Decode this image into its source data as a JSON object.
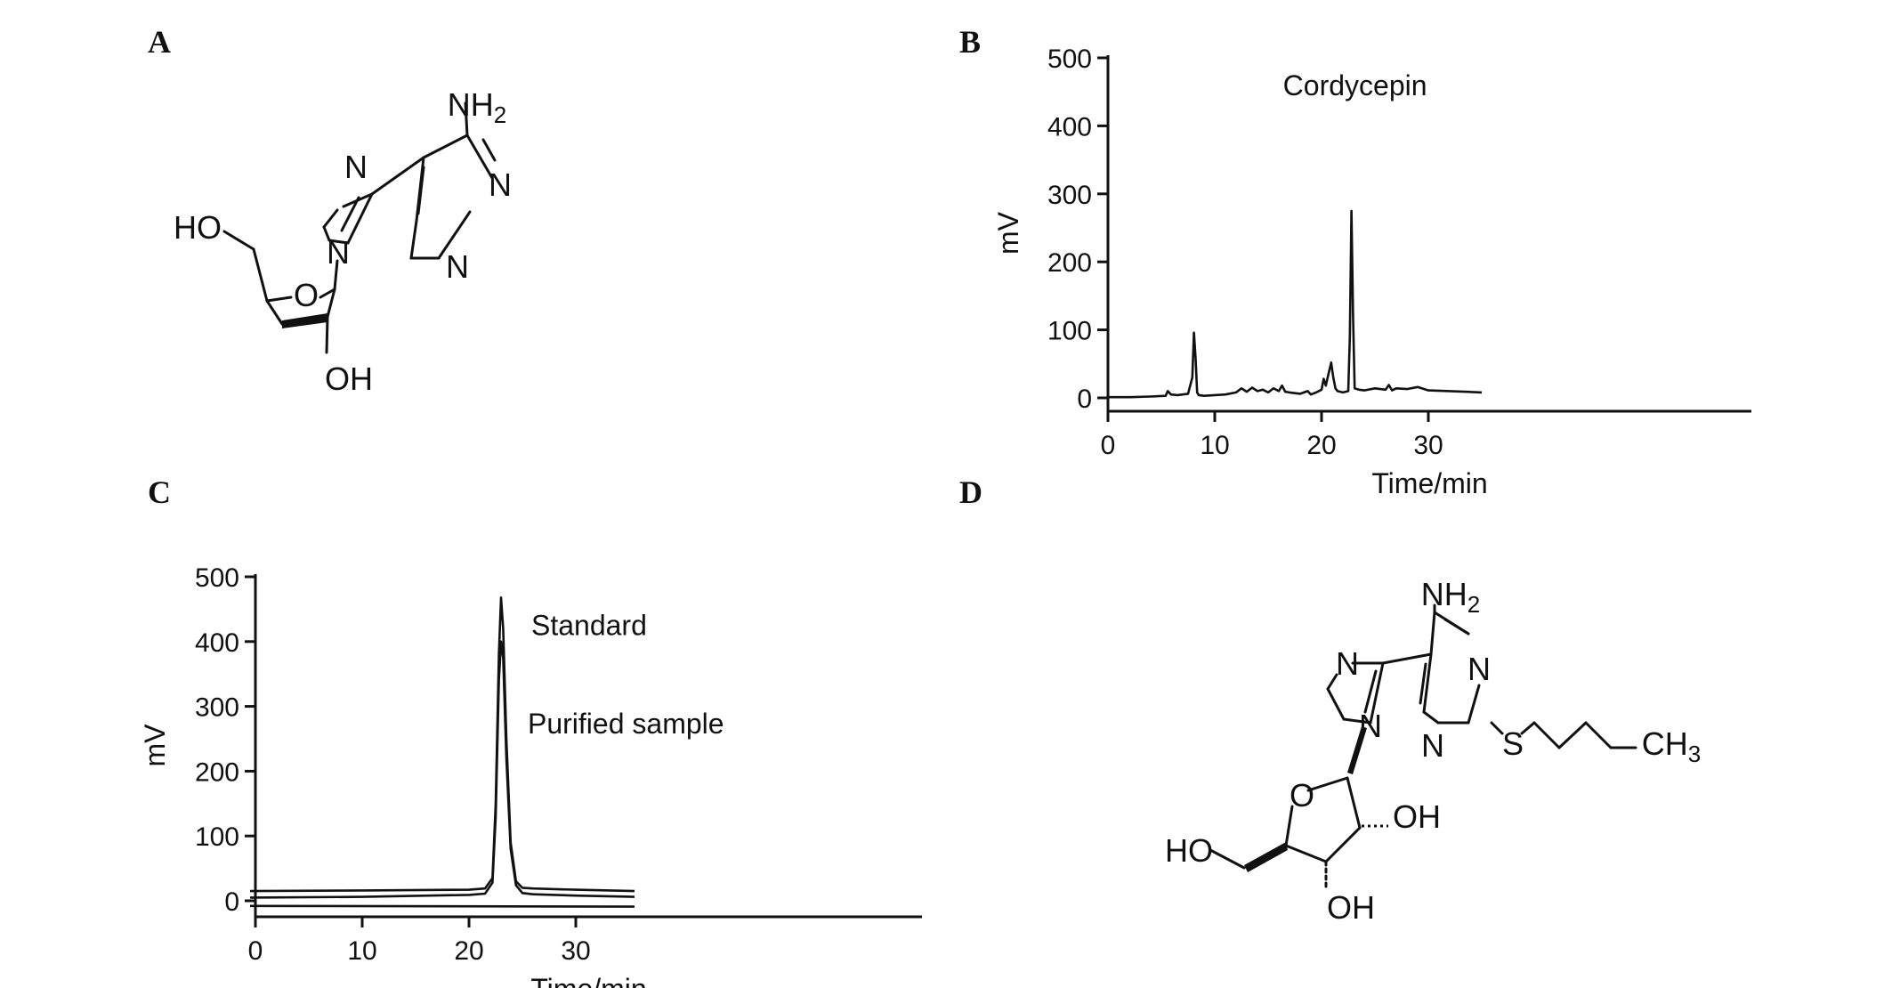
{
  "panels": {
    "a": "A",
    "b": "B",
    "c": "C",
    "d": "D"
  },
  "molecule_a": {
    "labels": {
      "nh2_main": "NH",
      "nh2_sub": "2",
      "n7": "N",
      "n1": "N",
      "n3": "N",
      "n9": "N",
      "ho": "HO",
      "o_ring": "O",
      "oh": "OH"
    }
  },
  "molecule_d": {
    "labels": {
      "nh2_main": "NH",
      "nh2_sub": "2",
      "n7": "N",
      "n1": "N",
      "n3": "N",
      "n9": "N",
      "s": "S",
      "ch3_main": "CH",
      "ch3_sub": "3",
      "o_ring": "O",
      "oh2": "OH",
      "oh3": "OH",
      "ho": "HO"
    }
  },
  "chart_data": [
    {
      "type": "line",
      "panel": "B",
      "xlabel": "Time/min",
      "ylabel": "mV",
      "xlim": [
        0,
        35
      ],
      "ylim": [
        0,
        500
      ],
      "xticks": [
        0,
        10,
        20,
        30
      ],
      "yticks": [
        0,
        100,
        200,
        300,
        400,
        500
      ],
      "annotations": [
        {
          "text": "Cordycepin",
          "x": 22.8,
          "y": 275
        }
      ],
      "series": [
        {
          "x": [
            0,
            2,
            4,
            5.4,
            5.6,
            5.9,
            6.5,
            7.5,
            7.9,
            8.05,
            8.2,
            8.35,
            8.5,
            9,
            10,
            11,
            12,
            12.5,
            13,
            13.5,
            14,
            14.5,
            15,
            15.5,
            16,
            16.3,
            16.6,
            17,
            18,
            18.7,
            19,
            19.5,
            20,
            20.2,
            20.4,
            20.6,
            20.8,
            20.9,
            21.1,
            21.3,
            21.5,
            22,
            22.5,
            22.65,
            22.8,
            22.95,
            23.1,
            23.5,
            24,
            25,
            26,
            26.3,
            26.6,
            27,
            28,
            29,
            30,
            32,
            35
          ],
          "y": [
            1,
            1,
            2,
            3,
            10,
            5,
            4,
            6,
            30,
            96,
            60,
            8,
            4,
            3,
            4,
            5,
            8,
            14,
            9,
            15,
            10,
            12,
            8,
            14,
            10,
            18,
            9,
            8,
            6,
            10,
            5,
            8,
            12,
            28,
            18,
            32,
            45,
            52,
            30,
            14,
            10,
            8,
            10,
            90,
            275,
            120,
            14,
            12,
            11,
            14,
            12,
            19,
            11,
            14,
            13,
            16,
            11,
            10,
            8
          ]
        }
      ]
    },
    {
      "type": "line",
      "panel": "C",
      "xlabel": "Time/min",
      "ylabel": "mV",
      "xlim": [
        0,
        35
      ],
      "ylim": [
        0,
        500
      ],
      "xticks": [
        0,
        10,
        20,
        30
      ],
      "yticks": [
        0,
        100,
        200,
        300,
        400,
        500
      ],
      "annotations": [
        {
          "text": "Standard",
          "x": 23,
          "y": 465
        },
        {
          "text": "Purified sample",
          "x": 23,
          "y": 400
        }
      ],
      "series": [
        {
          "name": "Standard",
          "x": [
            -0.5,
            10,
            20,
            21.5,
            22.2,
            22.5,
            22.8,
            23.0,
            23.2,
            23.5,
            23.9,
            24.4,
            25,
            26,
            30,
            35.5
          ],
          "y": [
            15,
            16,
            17,
            19,
            35,
            150,
            380,
            468,
            420,
            250,
            90,
            30,
            20,
            19,
            17,
            15
          ]
        },
        {
          "name": "Purified sample",
          "x": [
            -0.5,
            10,
            20,
            21.5,
            22.2,
            22.5,
            22.8,
            23.0,
            23.2,
            23.5,
            23.9,
            24.4,
            25,
            26,
            30,
            35.5
          ],
          "y": [
            5,
            6,
            9,
            11,
            28,
            130,
            340,
            400,
            375,
            220,
            80,
            24,
            12,
            10,
            8,
            6
          ]
        },
        {
          "name": "",
          "x": [
            -0.5,
            35.5
          ],
          "y": [
            -8,
            -9
          ]
        }
      ]
    }
  ]
}
